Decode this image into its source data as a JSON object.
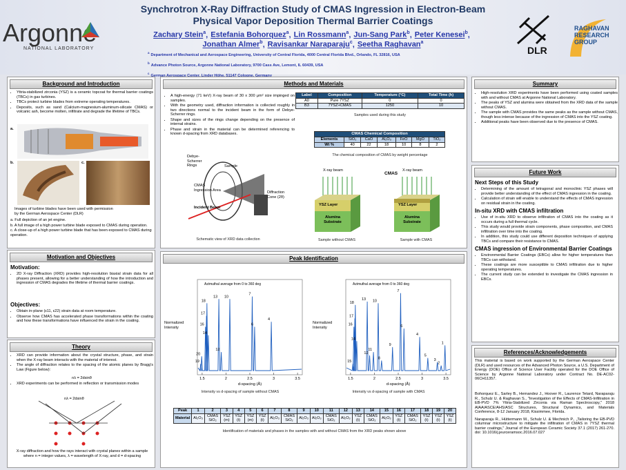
{
  "header": {
    "title_line1": "Synchrotron X-Ray Diffraction Study of CMAS Ingression in Electron-Beam",
    "title_line2": "Physical Vapor Deposition Thermal Barrier Coatings",
    "authors_line1": [
      {
        "name": "Zachary Stein",
        "sup": "a",
        "sep": ","
      },
      {
        "name": "Estefania Bohorquez",
        "sup": "a",
        "sep": ","
      },
      {
        "name": "Lin Rossmann",
        "sup": "a",
        "sep": ","
      },
      {
        "name": "Jun-Sang Park",
        "sup": "b",
        "sep": ","
      },
      {
        "name": "Peter Kenesei",
        "sup": "b",
        "sep": ","
      }
    ],
    "authors_line2": [
      {
        "name": "Jonathan Almer",
        "sup": "b",
        "sep": ","
      },
      {
        "name": "Ravisankar Naraparaju",
        "sup": "c",
        "sep": ","
      },
      {
        "name": "Seetha Raghavan",
        "sup": "a"
      }
    ],
    "affiliations": [
      {
        "sup": "a",
        "text": "Department of Mechanical and Aerospace Engineering, University of Central Florida, 4000 Central Florida Blvd., Orlando, FL 32816, USA"
      },
      {
        "sup": "b",
        "text": "Advance Photon Source, Argonne National Laboratory, 9700 Cass Ave, Lemont, IL 60439, USA"
      },
      {
        "sup": "c",
        "text": "German Aerospace Center, Linder Höhe, 51147 Cologne, Germany"
      }
    ]
  },
  "logos": {
    "argonne": "Argonne",
    "argonne_sub": "NATIONAL LABORATORY",
    "dlr": "DLR",
    "raghavan": [
      "RAGHAVAN",
      "RESEARCH",
      "GROUP"
    ]
  },
  "background": {
    "heading": "Background and Introduction",
    "bullets": [
      "Yttria-stabilized zirconia (YSZ) is a ceramic topcoat for thermal barrier coatings (TBCs) in gas turbines.",
      "TBCs protect turbine blades from extreme operating temperatures.",
      "Deposits, such as sand (Calcium-magnesium-aluminum-silicate CMAS) or volcanic ash, become molten, infiltrate and degrade the lifetime of TBCs."
    ],
    "figure_labels": [
      "a.",
      "b.",
      "c."
    ],
    "caption": "Images of turbine blades have been used with permission by the German Aerospace Center (DLR)",
    "notes": [
      "a.  Full depiction of an jet engine.",
      "b.  A full image of a high power turbine blade exposed to CMAS during operation.",
      "c.  A close-up of a high power turbine blade that has been exposed to CMAS during operation."
    ]
  },
  "motivation": {
    "heading": "Motivation and Objectives",
    "motivation_label": "Motivation:",
    "motivation_bullets": [
      "2D X-ray Diffraction (XRD) provides high-resolution biaxial strain data for all phases present, allowing for a better understanding of how the introduction and ingression of CMAS degrades the lifetime of thermal barrier coatings."
    ],
    "objectives_label": "Objectives:",
    "objectives_bullets": [
      "Obtain in-plane (ε11, ε22) strain data at room temperature.",
      "Observe how CMAS has accelerated phase transformations within the coating and how these transformations have influenced the strain in the coating."
    ]
  },
  "theory": {
    "heading": "Theory",
    "bullets_a": [
      "XRD can provide information about the crystal structure, phase, and strain when the X-ray beam interacts with the material of interest.",
      "The angle of diffraction relates to the spacing of the atomic planes by Bragg's Law (Figure below):"
    ],
    "equation": "nλ = 2dsinθ",
    "bullets_b": [
      "XRD experiments can be performed in reflection or transmission modes"
    ],
    "figure_equation": "nλ = 2dsinθ",
    "caption": "X-ray diffraction and how the rays interact with crystal planes within a sample where n = integer values, λ = wavelength of X-ray, and d = d-spacing"
  },
  "methods": {
    "heading": "Methods and Materials",
    "bullets": [
      "A high-energy (71 keV) X-ray beam of 30 x 300 μm² size impinged on samples.",
      "With the geometry used, diffraction information is collected roughly in two directions normal to the incident beam in the form of Debye-Scherrer rings.",
      "Shape and sizes of the rings change depending on the presence of internal strains.",
      "Phase and strain in the material can be determined referencing to known d-spacing from XRD databases."
    ],
    "samples_table": {
      "header": [
        "Label",
        "Composition",
        "Temperature (°C)",
        "Total Time (h)"
      ],
      "rows": [
        [
          "A0",
          "Pure 7YSZ",
          0,
          0
        ],
        [
          "B3",
          "7YSZ+CMAS",
          1250,
          10
        ]
      ],
      "caption": "Samples used during this study"
    },
    "composition_table": {
      "title": "CMAS Chemical Composition",
      "header": [
        "Elements",
        "SiO₂",
        "CaO",
        "Al₂O₃",
        "FeO",
        "MgO",
        "TiO₂"
      ],
      "row": [
        "Wt %",
        40,
        22,
        18,
        10,
        8,
        2
      ],
      "caption": "The chemical composition of CMAS by weight percentage"
    },
    "schematic": {
      "rings": "Debye-Scherrer Rings",
      "sample": "Sample",
      "area": "CMAS Ingression Area",
      "beam": "Incident Beam",
      "cone": "Diffraction Cone (2θ)",
      "holder": "Holder",
      "caption": "Schematic view of XRD data collection"
    },
    "sample_figures": [
      {
        "beam": "X-ray beam",
        "layer": "YSZ Layer",
        "substrate": "Alumina Substrate",
        "caption": "Sample without CMAS"
      },
      {
        "cmas": "CMAS",
        "beam": "X-ray beam",
        "layer": "YSZ Layer",
        "substrate": "Alumina Substrate",
        "caption": "Sample with CMAS"
      }
    ]
  },
  "peaks": {
    "heading": "Peak Identification",
    "plots": [
      {
        "title": "Azimuthal average from 0 to 360 deg",
        "ylabel": "Normalized Intensity",
        "xlabel": "d-spacing (Å)",
        "xlim": [
          1.4,
          3.6
        ],
        "xticks": [
          1.5,
          2,
          2.5,
          3,
          3.5
        ],
        "peak_labels": [
          18,
          13,
          10,
          7,
          17,
          4,
          6,
          16,
          14,
          12,
          20,
          19
        ],
        "caption": "Intensity vs d-spacing of sample without CMAS"
      },
      {
        "title": "Azimuthal average from 0 to 360 deg",
        "ylabel": "Normalized Intensity",
        "xlabel": "d-spacing (Å)",
        "xlim": [
          1.4,
          3.6
        ],
        "xticks": [
          1.5,
          2,
          2.5,
          3,
          3.5
        ],
        "peak_labels": [
          18,
          13,
          10,
          7,
          17,
          6,
          16,
          4,
          1,
          14,
          11,
          9,
          12,
          15,
          8,
          5,
          3,
          2
        ],
        "caption": "Intensity vs d-spacing of sample with CMAS"
      }
    ],
    "table": {
      "peak_label": "Peak",
      "material_label": "Material",
      "peaks": [
        1,
        2,
        3,
        4,
        5,
        6,
        7,
        8,
        9,
        10,
        11,
        12,
        13,
        14,
        15,
        16,
        17,
        18,
        19,
        20
      ],
      "materials": [
        "Al₂O₃",
        "CMAS SiO₂",
        "YSZ (m)",
        "YSZ (t)",
        "YSZ (m)",
        "YSZ (t)",
        "Al₂O₃",
        "CMAS SiO₂",
        "Al₂O₃",
        "Al₂O₃",
        "CMAS SiO₂",
        "Al₂O₃",
        "YSZ (t)",
        "CMAS SiO₂",
        "Al₂O₃",
        "YSZ (t)",
        "CMAS SiO₂",
        "YSZ (t)",
        "YSZ (t)",
        "YSZ (t)"
      ]
    },
    "caption": "Identification of materials and phases in the samples with and without CMAS from the XRD peaks shown above"
  },
  "summary": {
    "heading": "Summary",
    "bullets": [
      "High-resolution XRD experiments have been performed using coated samples with and without CMAS at Argonne National Laboratory.",
      "The peaks of YSZ and alumina were obtained from the XRD data of the sample without CMAS.",
      "The sample with CMAS provides the same peaks as the sample without CMAS, though less intense because of the ingression of CMAS into the YSZ coating.",
      "Additional peaks have been observed due to the presence of CMAS."
    ]
  },
  "future": {
    "heading": "Future Work",
    "subsections": [
      {
        "title": "Next Steps of this Study",
        "bullets": [
          "Determining of the amount of tetragonal and monoclinic YSZ phases will provide better understanding of the effect of CMAS ingression in the coating.",
          "Calculation of strain will enable to understand the effects of CMAS ingression on residual strain in the coating."
        ]
      },
      {
        "title": "In-situ XRD with CMAS infiltration",
        "bullets": [
          "Use of in-situ XRD to observe infiltration of CMAS into the coating as it occurs during a full thermal cycle.",
          "This study would provide strain components, phase composition, and CMAS infiltration over time into the coating.",
          "In addition, this study could use different deposition techniques of applying TBCs and compare their resistance to CMAS."
        ]
      },
      {
        "title": "CMAS ingression of Environmental Barrier Coatings",
        "bullets": [
          "Environmental Barrier Coatings (EBCs) allow for higher temperatures than TBCs can withstand.",
          "These coatings are more susceptible to CMAS infiltration due to higher operating temperatures.",
          "The current study can be extended to investigate the CMAS ingression in EBCs."
        ]
      }
    ]
  },
  "references": {
    "heading": "References/Acknowledgements",
    "acknowledgement": "This material is based on work supported by the German Aerospace Center (DLR) and used resources of the Advanced Photon Source, a U.S. Department of Energy (DOE) Office of Science User Facility operated for the DOE Office of Science by Argonne National Laboratory under Contract No. DE-AC02-06CH11357.",
    "refs": [
      "Bohorquez E., Sarley B., Hernandez J., Hoover R., Laurence Tetard, Naraparaju R., Schulz U. & Raghavan S., \"Investigation of the Effects of CMAS-Infiltration in EB-PVD 7% Yttria-Stabilized Zirconia via Raman Spectroscopy,\" 2018 AIAA/ASCE/AHS/ASC Structures, Structural Dynamics, and Materials Conference, 8-12 January 2018, Kissimmee, Florida.",
      "Naraparaju R., Hüttermann M., Schulz U. & Mechnich P., „Tailoring the EB-PVD columnar microstructure to mitigate the infiltration of CMAS in 7YSZ thermal barrier coatings,\" Journal of the European Ceramic Society 37.1 (2017) 261-270. doi: 10.1016/j.jeurceramsoc.2016.07.027"
    ]
  }
}
